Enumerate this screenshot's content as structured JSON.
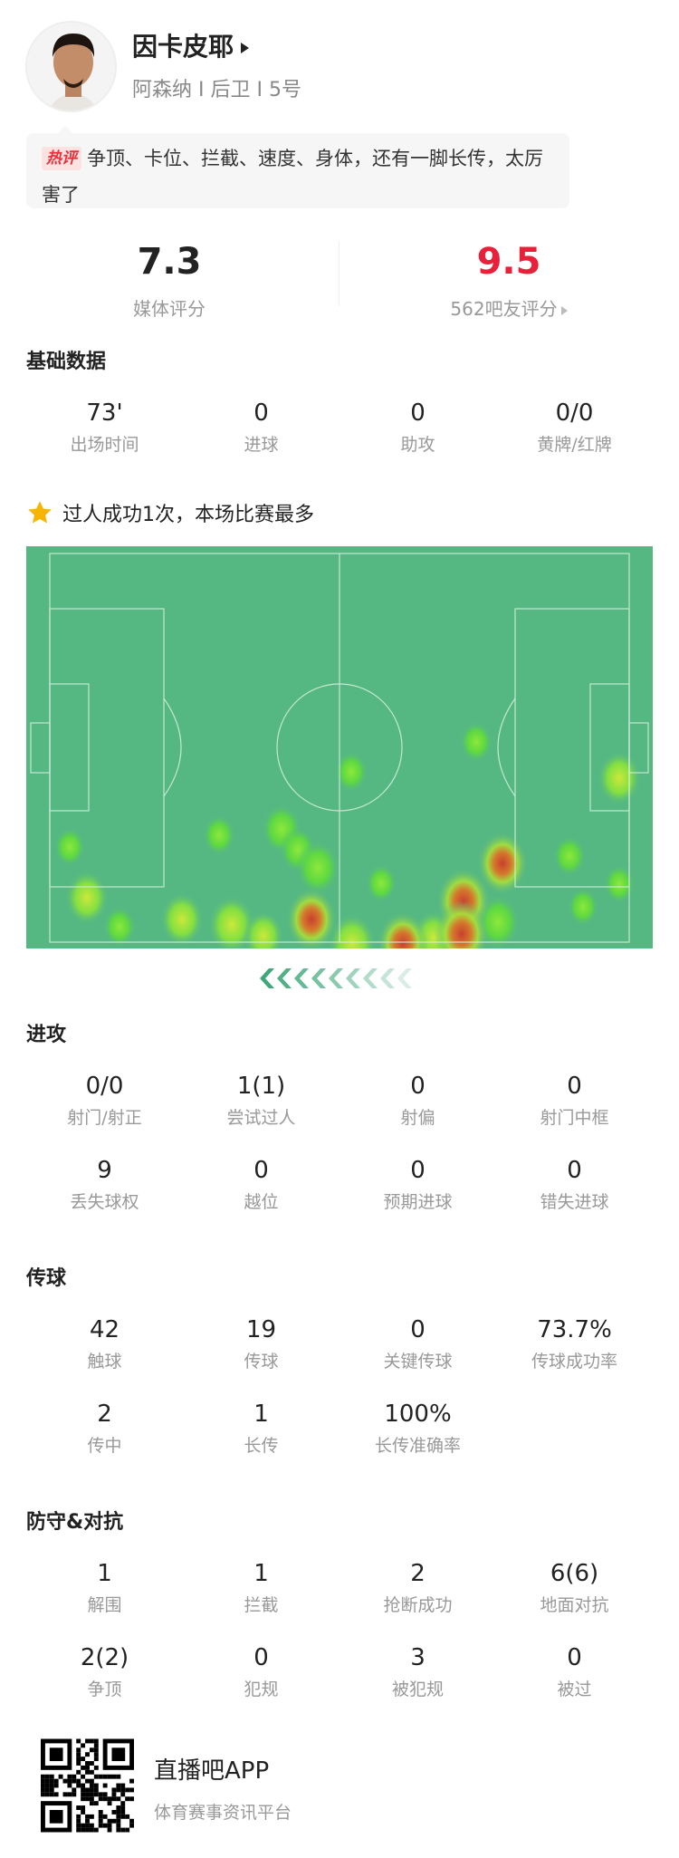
{
  "player": {
    "name": "因卡皮耶",
    "info": "阿森纳 I 后卫 I 5号",
    "comment_tag": "热评",
    "comment": "争顶、卡位、拦截、速度、身体，还有一脚长传，太厉害了"
  },
  "ratings": {
    "media_score": "7.3",
    "media_label": "媒体评分",
    "fan_score": "9.5",
    "fan_label": "562吧友评分",
    "fan_color": "#e8203a"
  },
  "basic": {
    "title": "基础数据",
    "stats": [
      {
        "value": "73'",
        "label": "出场时间"
      },
      {
        "value": "0",
        "label": "进球"
      },
      {
        "value": "0",
        "label": "助攻"
      },
      {
        "value": "0/0",
        "label": "黄牌/红牌"
      }
    ]
  },
  "highlight": {
    "icon": "star-icon",
    "text": "过人成功1次，本场比赛最多"
  },
  "heatmap": {
    "pitch_color": "#55b882",
    "direction": "attacking-left"
  },
  "sections": [
    {
      "title": "进攻",
      "stats": [
        {
          "value": "0/0",
          "label": "射门/射正"
        },
        {
          "value": "1(1)",
          "label": "尝试过人"
        },
        {
          "value": "0",
          "label": "射偏"
        },
        {
          "value": "0",
          "label": "射门中框"
        },
        {
          "value": "9",
          "label": "丢失球权"
        },
        {
          "value": "0",
          "label": "越位"
        },
        {
          "value": "0",
          "label": "预期进球"
        },
        {
          "value": "0",
          "label": "错失进球"
        }
      ]
    },
    {
      "title": "传球",
      "stats": [
        {
          "value": "42",
          "label": "触球"
        },
        {
          "value": "19",
          "label": "传球"
        },
        {
          "value": "0",
          "label": "关键传球"
        },
        {
          "value": "73.7%",
          "label": "传球成功率"
        },
        {
          "value": "2",
          "label": "传中"
        },
        {
          "value": "1",
          "label": "长传"
        },
        {
          "value": "100%",
          "label": "长传准确率"
        }
      ]
    },
    {
      "title": "防守&对抗",
      "stats": [
        {
          "value": "1",
          "label": "解围"
        },
        {
          "value": "1",
          "label": "拦截"
        },
        {
          "value": "2",
          "label": "抢断成功"
        },
        {
          "value": "6(6)",
          "label": "地面对抗"
        },
        {
          "value": "2(2)",
          "label": "争顶"
        },
        {
          "value": "0",
          "label": "犯规"
        },
        {
          "value": "3",
          "label": "被犯规"
        },
        {
          "value": "0",
          "label": "被过"
        }
      ]
    }
  ],
  "footer": {
    "app_name": "直播吧APP",
    "app_sub": "体育赛事资讯平台"
  }
}
